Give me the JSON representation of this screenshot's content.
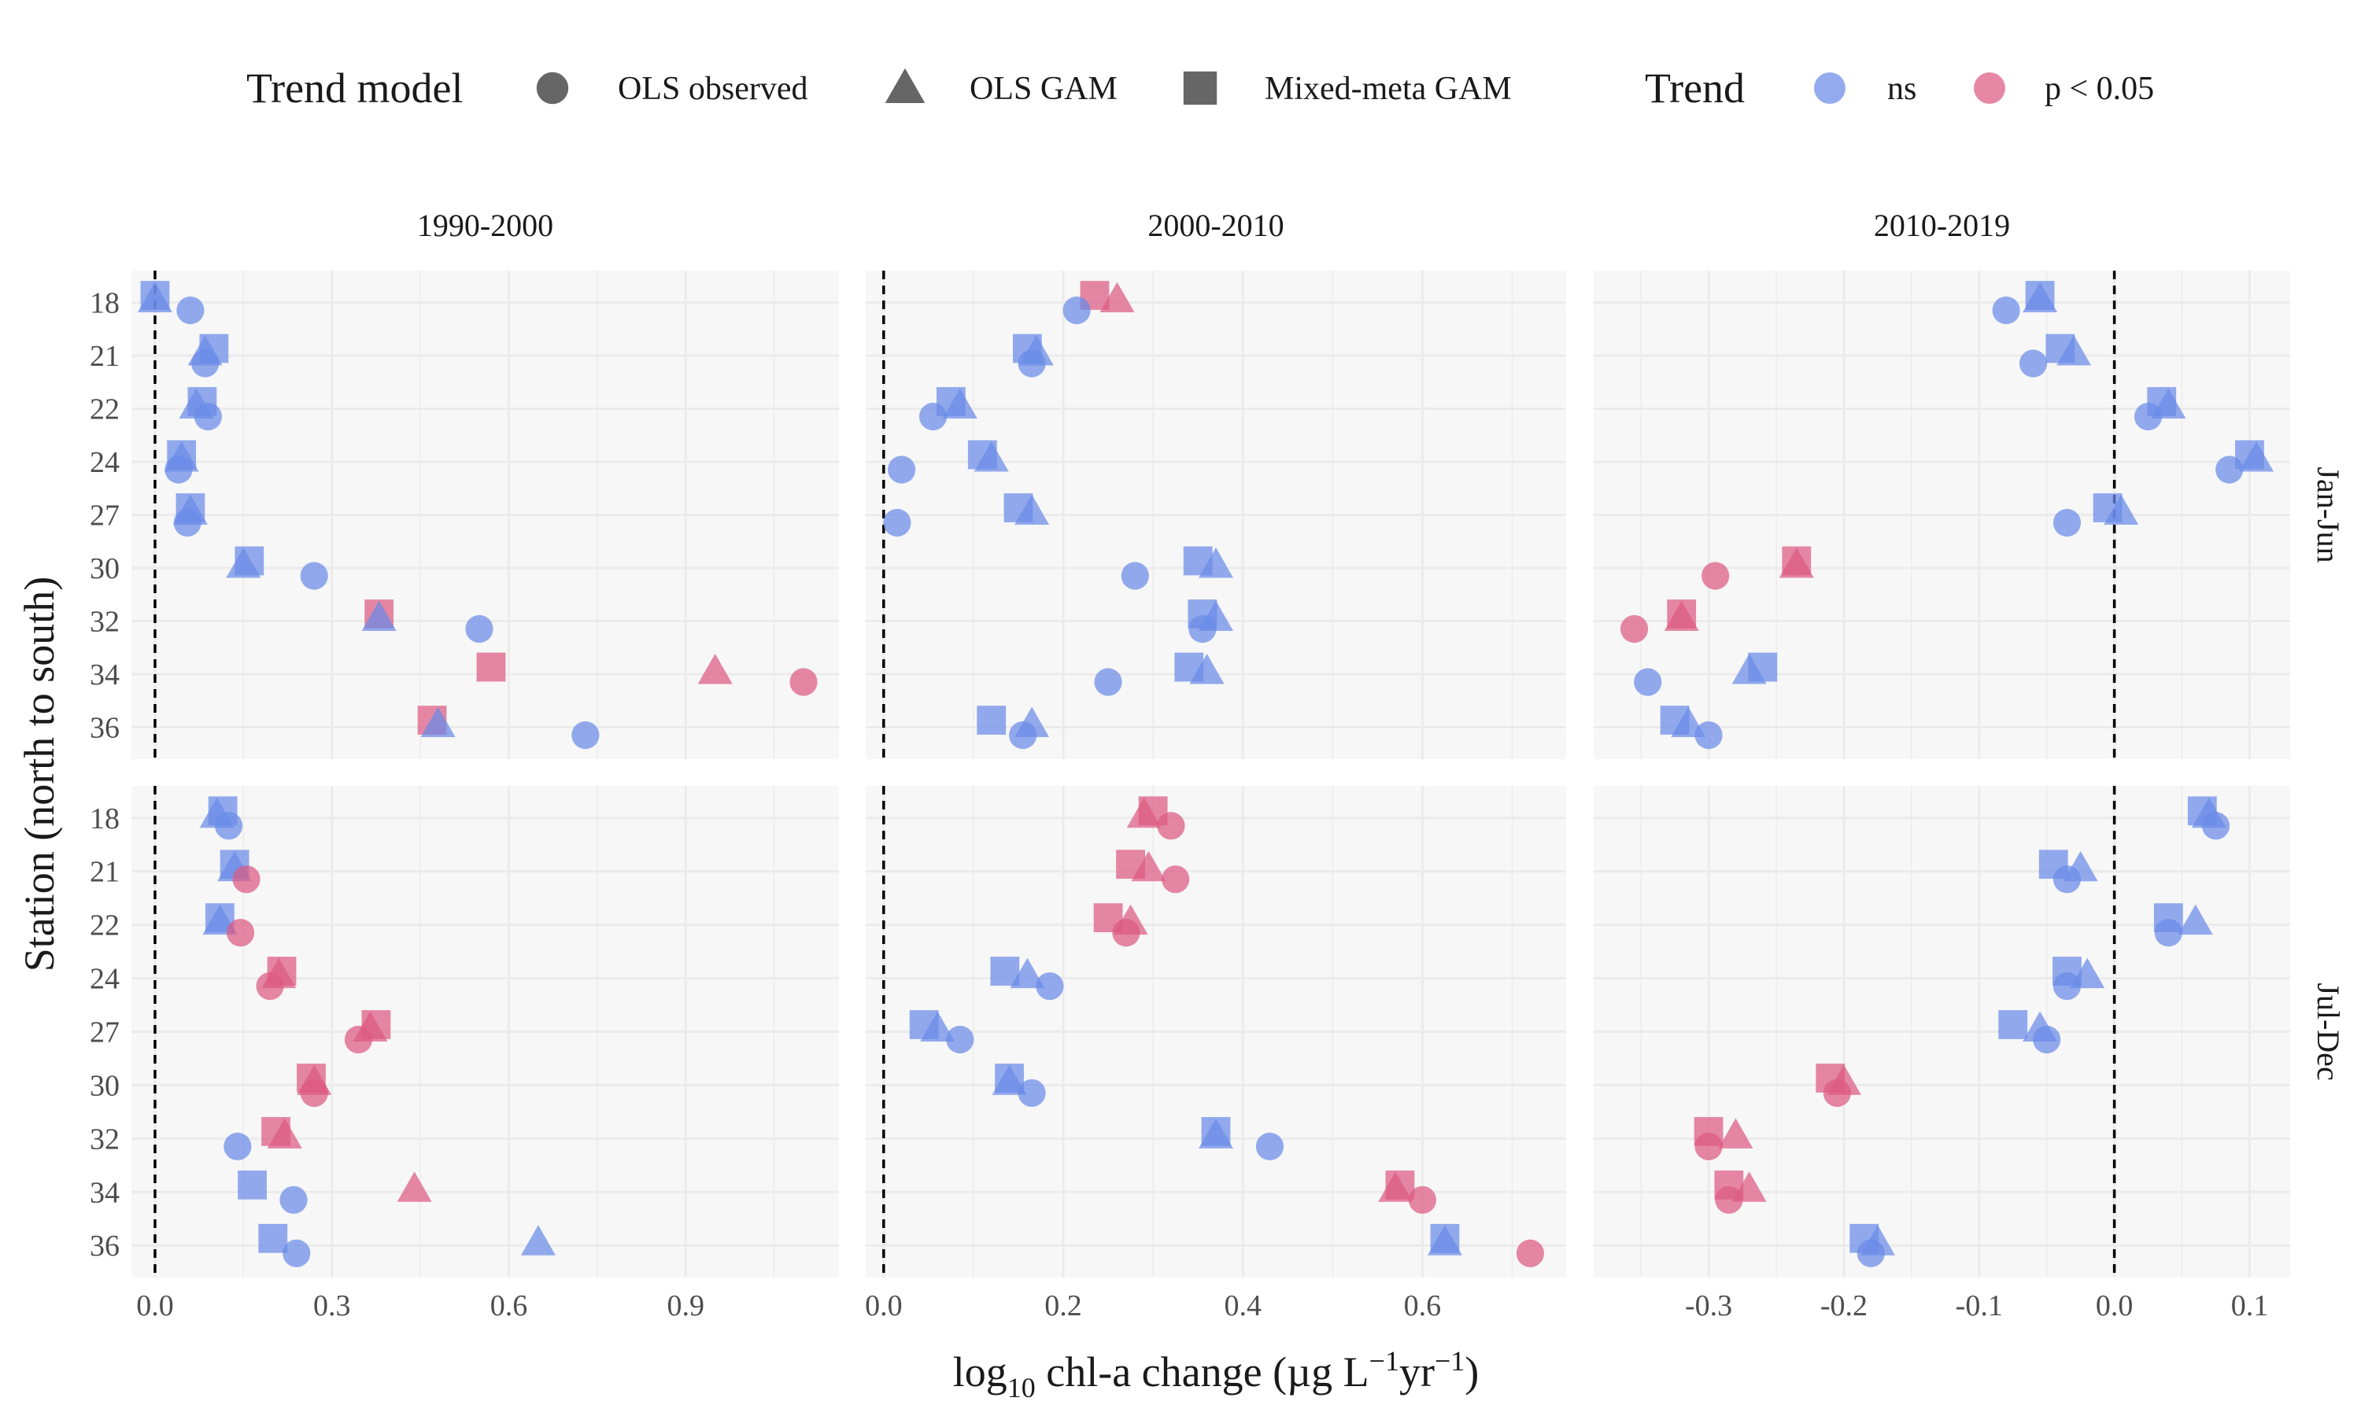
{
  "chart_data": {
    "type": "scatter",
    "xlabel": "log10 chl-a change (µg L−1yr−1)",
    "ylabel": "Station (north to south)",
    "facet_columns": [
      "1990-2000",
      "2000-2010",
      "2010-2019"
    ],
    "facet_rows": [
      "Jan-Jun",
      "Jul-Dec"
    ],
    "stations": [
      "18",
      "21",
      "22",
      "24",
      "27",
      "30",
      "32",
      "34",
      "36"
    ],
    "xlim": {
      "1990-2000": [
        -0.04,
        1.16
      ],
      "2000-2010": [
        -0.02,
        0.76
      ],
      "2010-2019": [
        -0.385,
        0.13
      ]
    },
    "xticks": {
      "1990-2000": [
        0.0,
        0.3,
        0.6,
        0.9
      ],
      "2000-2010": [
        0.0,
        0.2,
        0.4,
        0.6
      ],
      "2010-2019": [
        -0.3,
        -0.2,
        -0.1,
        0.0,
        0.1
      ]
    },
    "xtick_labels": {
      "1990-2000": [
        "0.0",
        "0.3",
        "0.6",
        "0.9"
      ],
      "2000-2010": [
        "0.0",
        "0.2",
        "0.4",
        "0.6"
      ],
      "2010-2019": [
        "-0.3",
        "-0.2",
        "-0.1",
        "0.0",
        "0.1"
      ]
    },
    "reference_line": 0,
    "grid": true,
    "legend": {
      "position": "top",
      "shape_title": "Trend model",
      "shape_items": [
        {
          "key": "OLS observed",
          "label": "OLS observed",
          "shape": "circle"
        },
        {
          "key": "OLS GAM",
          "label": "OLS GAM",
          "shape": "triangle"
        },
        {
          "key": "Mixed-meta GAM",
          "label": "Mixed-meta GAM",
          "shape": "square"
        }
      ],
      "color_title": "Trend",
      "color_items": [
        {
          "key": "ns",
          "label": "ns",
          "color": "#6a8ae8"
        },
        {
          "key": "sig",
          "label": "p < 0.05",
          "color": "#dc5a82"
        }
      ]
    },
    "colors": {
      "ns": "#6a8ae8",
      "sig": "#dc5a82"
    },
    "panels": [
      {
        "period": "1990-2000",
        "season": "Jan-Jun",
        "points": [
          {
            "station": "18",
            "ols": [
              0.06,
              "ns"
            ],
            "gam": [
              0.0,
              "ns"
            ],
            "mixed": [
              0.0,
              "ns"
            ]
          },
          {
            "station": "21",
            "ols": [
              0.085,
              "ns"
            ],
            "gam": [
              0.085,
              "ns"
            ],
            "mixed": [
              0.1,
              "ns"
            ]
          },
          {
            "station": "22",
            "ols": [
              0.09,
              "ns"
            ],
            "gam": [
              0.07,
              "ns"
            ],
            "mixed": [
              0.08,
              "ns"
            ]
          },
          {
            "station": "24",
            "ols": [
              0.04,
              "ns"
            ],
            "gam": [
              0.045,
              "ns"
            ],
            "mixed": [
              0.045,
              "ns"
            ]
          },
          {
            "station": "27",
            "ols": [
              0.055,
              "ns"
            ],
            "gam": [
              0.06,
              "ns"
            ],
            "mixed": [
              0.06,
              "ns"
            ]
          },
          {
            "station": "30",
            "ols": [
              0.27,
              "ns"
            ],
            "gam": [
              0.15,
              "ns"
            ],
            "mixed": [
              0.16,
              "ns"
            ]
          },
          {
            "station": "32",
            "ols": [
              0.55,
              "ns"
            ],
            "gam": [
              0.38,
              "ns"
            ],
            "mixed": [
              0.38,
              "sig"
            ]
          },
          {
            "station": "34",
            "ols": [
              1.1,
              "sig"
            ],
            "gam": [
              0.95,
              "sig"
            ],
            "mixed": [
              0.57,
              "sig"
            ]
          },
          {
            "station": "36",
            "ols": [
              0.73,
              "ns"
            ],
            "gam": [
              0.48,
              "ns"
            ],
            "mixed": [
              0.47,
              "sig"
            ]
          }
        ]
      },
      {
        "period": "2000-2010",
        "season": "Jan-Jun",
        "points": [
          {
            "station": "18",
            "ols": [
              0.215,
              "ns"
            ],
            "gam": [
              0.26,
              "sig"
            ],
            "mixed": [
              0.235,
              "sig"
            ]
          },
          {
            "station": "21",
            "ols": [
              0.165,
              "ns"
            ],
            "gam": [
              0.17,
              "ns"
            ],
            "mixed": [
              0.16,
              "ns"
            ]
          },
          {
            "station": "22",
            "ols": [
              0.055,
              "ns"
            ],
            "gam": [
              0.085,
              "ns"
            ],
            "mixed": [
              0.075,
              "ns"
            ]
          },
          {
            "station": "24",
            "ols": [
              0.02,
              "ns"
            ],
            "gam": [
              0.12,
              "ns"
            ],
            "mixed": [
              0.11,
              "ns"
            ]
          },
          {
            "station": "27",
            "ols": [
              0.015,
              "ns"
            ],
            "gam": [
              0.165,
              "ns"
            ],
            "mixed": [
              0.15,
              "ns"
            ]
          },
          {
            "station": "30",
            "ols": [
              0.28,
              "ns"
            ],
            "gam": [
              0.37,
              "ns"
            ],
            "mixed": [
              0.35,
              "ns"
            ]
          },
          {
            "station": "32",
            "ols": [
              0.355,
              "ns"
            ],
            "gam": [
              0.37,
              "ns"
            ],
            "mixed": [
              0.355,
              "ns"
            ]
          },
          {
            "station": "34",
            "ols": [
              0.25,
              "ns"
            ],
            "gam": [
              0.36,
              "ns"
            ],
            "mixed": [
              0.34,
              "ns"
            ]
          },
          {
            "station": "36",
            "ols": [
              0.155,
              "ns"
            ],
            "gam": [
              0.165,
              "ns"
            ],
            "mixed": [
              0.12,
              "ns"
            ]
          }
        ]
      },
      {
        "period": "2010-2019",
        "season": "Jan-Jun",
        "points": [
          {
            "station": "18",
            "ols": [
              -0.08,
              "ns"
            ],
            "gam": [
              -0.055,
              "ns"
            ],
            "mixed": [
              -0.055,
              "ns"
            ]
          },
          {
            "station": "21",
            "ols": [
              -0.06,
              "ns"
            ],
            "gam": [
              -0.03,
              "ns"
            ],
            "mixed": [
              -0.04,
              "ns"
            ]
          },
          {
            "station": "22",
            "ols": [
              0.025,
              "ns"
            ],
            "gam": [
              0.04,
              "ns"
            ],
            "mixed": [
              0.035,
              "ns"
            ]
          },
          {
            "station": "24",
            "ols": [
              0.085,
              "ns"
            ],
            "gam": [
              0.105,
              "ns"
            ],
            "mixed": [
              0.1,
              "ns"
            ]
          },
          {
            "station": "27",
            "ols": [
              -0.035,
              "ns"
            ],
            "gam": [
              0.005,
              "ns"
            ],
            "mixed": [
              -0.005,
              "ns"
            ]
          },
          {
            "station": "30",
            "ols": [
              -0.295,
              "sig"
            ],
            "gam": [
              -0.235,
              "sig"
            ],
            "mixed": [
              -0.235,
              "sig"
            ]
          },
          {
            "station": "32",
            "ols": [
              -0.355,
              "sig"
            ],
            "gam": [
              -0.32,
              "sig"
            ],
            "mixed": [
              -0.32,
              "sig"
            ]
          },
          {
            "station": "34",
            "ols": [
              -0.345,
              "ns"
            ],
            "gam": [
              -0.27,
              "ns"
            ],
            "mixed": [
              -0.26,
              "ns"
            ]
          },
          {
            "station": "36",
            "ols": [
              -0.3,
              "ns"
            ],
            "gam": [
              -0.315,
              "ns"
            ],
            "mixed": [
              -0.325,
              "ns"
            ]
          }
        ]
      },
      {
        "period": "1990-2000",
        "season": "Jul-Dec",
        "points": [
          {
            "station": "18",
            "ols": [
              0.125,
              "ns"
            ],
            "gam": [
              0.105,
              "ns"
            ],
            "mixed": [
              0.115,
              "ns"
            ]
          },
          {
            "station": "21",
            "ols": [
              0.155,
              "sig"
            ],
            "gam": [
              0.135,
              "ns"
            ],
            "mixed": [
              0.135,
              "ns"
            ]
          },
          {
            "station": "22",
            "ols": [
              0.145,
              "sig"
            ],
            "gam": [
              0.11,
              "ns"
            ],
            "mixed": [
              0.11,
              "ns"
            ]
          },
          {
            "station": "24",
            "ols": [
              0.195,
              "sig"
            ],
            "gam": [
              0.21,
              "sig"
            ],
            "mixed": [
              0.215,
              "sig"
            ]
          },
          {
            "station": "27",
            "ols": [
              0.345,
              "sig"
            ],
            "gam": [
              0.365,
              "sig"
            ],
            "mixed": [
              0.375,
              "sig"
            ]
          },
          {
            "station": "30",
            "ols": [
              0.27,
              "sig"
            ],
            "gam": [
              0.27,
              "sig"
            ],
            "mixed": [
              0.265,
              "sig"
            ]
          },
          {
            "station": "32",
            "ols": [
              0.14,
              "ns"
            ],
            "gam": [
              0.22,
              "sig"
            ],
            "mixed": [
              0.205,
              "sig"
            ]
          },
          {
            "station": "34",
            "ols": [
              0.235,
              "ns"
            ],
            "gam": [
              0.44,
              "sig"
            ],
            "mixed": [
              0.165,
              "ns"
            ]
          },
          {
            "station": "36",
            "ols": [
              0.24,
              "ns"
            ],
            "gam": [
              0.65,
              "ns"
            ],
            "mixed": [
              0.2,
              "ns"
            ]
          }
        ]
      },
      {
        "period": "2000-2010",
        "season": "Jul-Dec",
        "points": [
          {
            "station": "18",
            "ols": [
              0.32,
              "sig"
            ],
            "gam": [
              0.29,
              "sig"
            ],
            "mixed": [
              0.3,
              "sig"
            ]
          },
          {
            "station": "21",
            "ols": [
              0.325,
              "sig"
            ],
            "gam": [
              0.295,
              "sig"
            ],
            "mixed": [
              0.275,
              "sig"
            ]
          },
          {
            "station": "22",
            "ols": [
              0.27,
              "sig"
            ],
            "gam": [
              0.275,
              "sig"
            ],
            "mixed": [
              0.25,
              "sig"
            ]
          },
          {
            "station": "24",
            "ols": [
              0.185,
              "ns"
            ],
            "gam": [
              0.16,
              "ns"
            ],
            "mixed": [
              0.135,
              "ns"
            ]
          },
          {
            "station": "27",
            "ols": [
              0.085,
              "ns"
            ],
            "gam": [
              0.06,
              "ns"
            ],
            "mixed": [
              0.045,
              "ns"
            ]
          },
          {
            "station": "30",
            "ols": [
              0.165,
              "ns"
            ],
            "gam": [
              0.14,
              "ns"
            ],
            "mixed": [
              0.14,
              "ns"
            ]
          },
          {
            "station": "32",
            "ols": [
              0.43,
              "ns"
            ],
            "gam": [
              0.37,
              "ns"
            ],
            "mixed": [
              0.37,
              "ns"
            ]
          },
          {
            "station": "34",
            "ols": [
              0.6,
              "sig"
            ],
            "gam": [
              0.57,
              "sig"
            ],
            "mixed": [
              0.575,
              "sig"
            ]
          },
          {
            "station": "36",
            "ols": [
              0.72,
              "sig"
            ],
            "gam": [
              0.625,
              "ns"
            ],
            "mixed": [
              0.625,
              "ns"
            ]
          }
        ]
      },
      {
        "period": "2010-2019",
        "season": "Jul-Dec",
        "points": [
          {
            "station": "18",
            "ols": [
              0.075,
              "ns"
            ],
            "gam": [
              0.07,
              "ns"
            ],
            "mixed": [
              0.065,
              "ns"
            ]
          },
          {
            "station": "21",
            "ols": [
              -0.035,
              "ns"
            ],
            "gam": [
              -0.025,
              "ns"
            ],
            "mixed": [
              -0.045,
              "ns"
            ]
          },
          {
            "station": "22",
            "ols": [
              0.04,
              "ns"
            ],
            "gam": [
              0.06,
              "ns"
            ],
            "mixed": [
              0.04,
              "ns"
            ]
          },
          {
            "station": "24",
            "ols": [
              -0.035,
              "ns"
            ],
            "gam": [
              -0.02,
              "ns"
            ],
            "mixed": [
              -0.035,
              "ns"
            ]
          },
          {
            "station": "27",
            "ols": [
              -0.05,
              "ns"
            ],
            "gam": [
              -0.055,
              "ns"
            ],
            "mixed": [
              -0.075,
              "ns"
            ]
          },
          {
            "station": "30",
            "ols": [
              -0.205,
              "sig"
            ],
            "gam": [
              -0.2,
              "sig"
            ],
            "mixed": [
              -0.21,
              "sig"
            ]
          },
          {
            "station": "32",
            "ols": [
              -0.3,
              "sig"
            ],
            "gam": [
              -0.28,
              "sig"
            ],
            "mixed": [
              -0.3,
              "sig"
            ]
          },
          {
            "station": "34",
            "ols": [
              -0.285,
              "sig"
            ],
            "gam": [
              -0.27,
              "sig"
            ],
            "mixed": [
              -0.285,
              "sig"
            ]
          },
          {
            "station": "36",
            "ols": [
              -0.18,
              "ns"
            ],
            "gam": [
              -0.175,
              "ns"
            ],
            "mixed": [
              -0.185,
              "ns"
            ]
          }
        ]
      }
    ]
  }
}
